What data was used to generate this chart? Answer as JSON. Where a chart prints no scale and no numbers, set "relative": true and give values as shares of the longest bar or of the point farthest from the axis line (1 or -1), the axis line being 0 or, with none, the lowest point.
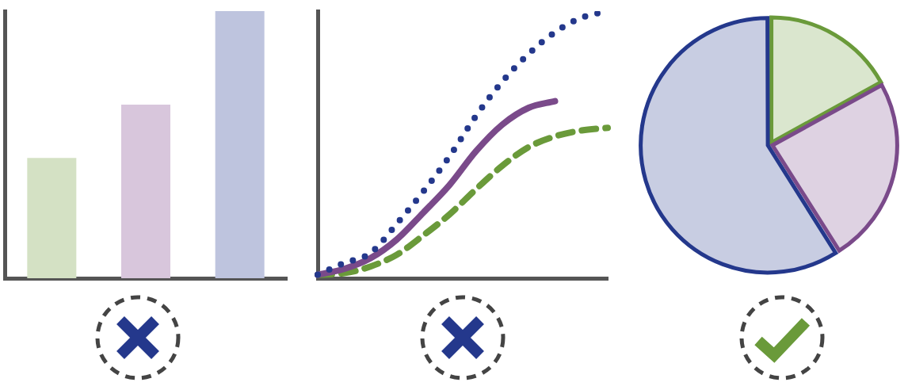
{
  "chart_data": [
    {
      "type": "bar",
      "relative": true,
      "categories": [
        null,
        null,
        null
      ],
      "values": [
        0.45,
        0.65,
        1
      ],
      "colors": [
        "#d4e1c4",
        "#d8c6dc",
        "#bec4de"
      ],
      "grid": false,
      "legend": false,
      "tick_labels": false
    },
    {
      "type": "line",
      "relative": true,
      "categories": [
        null,
        null,
        null,
        null,
        null,
        null,
        null,
        null,
        null,
        null,
        null,
        null
      ],
      "grid": false,
      "legend": false,
      "tick_labels": false,
      "marker": "none",
      "series": [
        {
          "color": "#24388c",
          "line_style": "dotted",
          "values": [
            0.013,
            0.057,
            0.094,
            0.204,
            0.324,
            0.456,
            0.607,
            0.736,
            0.84,
            0.921,
            0.975,
            1
          ]
        },
        {
          "color": "#7a4a8a",
          "line_style": "solid",
          "values": [
            0.013,
            0.035,
            0.075,
            0.145,
            0.245,
            0.349,
            0.475,
            0.575,
            0.638,
            0.663,
            null,
            null
          ]
        },
        {
          "color": "#6a9a3a",
          "line_style": "dashed",
          "values": [
            0.013,
            0.019,
            0.044,
            0.088,
            0.16,
            0.239,
            0.333,
            0.421,
            0.491,
            0.531,
            0.553,
            0.563
          ]
        }
      ]
    },
    {
      "type": "pie",
      "categories": [
        null,
        null,
        null
      ],
      "values": [
        17,
        24,
        59
      ],
      "colors": [
        "#6a9a3a",
        "#7a4a8a",
        "#24388c"
      ],
      "legend": false
    }
  ]
}
